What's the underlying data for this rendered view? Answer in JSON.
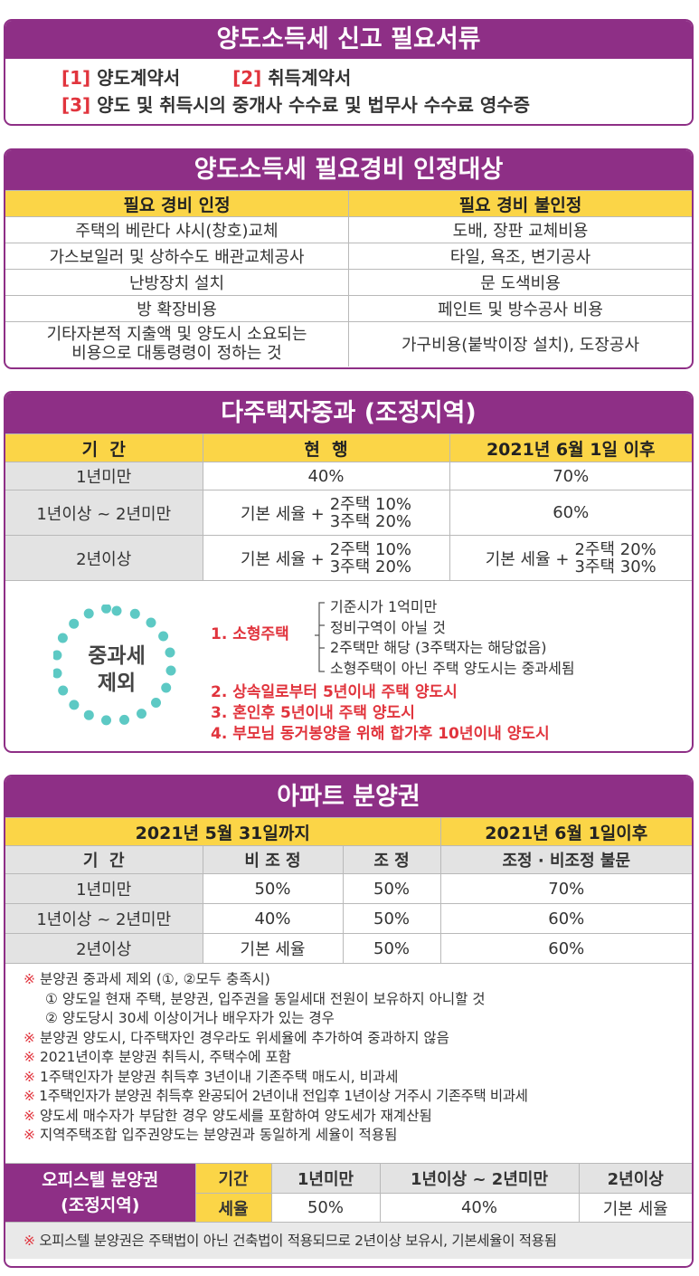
{
  "section1": {
    "title": "양도소득세 신고 필요서류",
    "items": [
      {
        "num": "[1]",
        "text": "양도계약서"
      },
      {
        "num": "[2]",
        "text": "취득계약서"
      },
      {
        "num": "[3]",
        "text": "양도 및 취득시의 중개사 수수료 및 법무사 수수료 영수증"
      }
    ]
  },
  "section2": {
    "title": "양도소득세 필요경비 인정대상",
    "col_headers": [
      "필요 경비 인정",
      "필요 경비 불인정"
    ],
    "rows": [
      [
        "주택의 베란다 샤시(창호)교체",
        "도배, 장판 교체비용"
      ],
      [
        "가스보일러 및 상하수도 배관교체공사",
        "타일, 욕조, 변기공사"
      ],
      [
        "난방장치 설치",
        "문 도색비용"
      ],
      [
        "방 확장비용",
        "페인트 및 방수공사 비용"
      ],
      [
        "기타자본적 지출액 및 양도시 소요되는",
        "가구비용(붙박이장 설치), 도장공사"
      ]
    ],
    "row5_line2": "비용으로 대통령령이 정하는 것"
  },
  "section3": {
    "title": "다주택자중과 (조정지역)",
    "col_headers": [
      "기  간",
      "현  행",
      "2021년 6월 1일 이후"
    ],
    "row1": {
      "period": "1년미만",
      "current": "40%",
      "after": "70%"
    },
    "row2": {
      "period": "1년이상 ~ 2년미만",
      "base": "기본 세율 +",
      "l1": "2주택 10%",
      "l2": "3주택 20%",
      "after": "60%"
    },
    "row3": {
      "period": "2년이상",
      "base": "기본 세율 +",
      "l1": "2주택 10%",
      "l2": "3주택 20%",
      "after_base": "기본 세율 +",
      "a1": "2주택 20%",
      "a2": "3주택 30%"
    },
    "exclusion": {
      "badge_line1": "중과세",
      "badge_line2": "제외",
      "item1": "1. 소형주택",
      "item1_sub": [
        "기준시가 1억미만",
        "정비구역이 아닐 것",
        "2주택만 해당 (3주택자는 해당없음)",
        "소형주택이 아닌 주택 양도시는 중과세됨"
      ],
      "item2": "2. 상속일로부터 5년이내 주택 양도시",
      "item3": "3. 혼인후 5년이내 주택 양도시",
      "item4": "4. 부모님 동거봉양을 위해 합가후 10년이내 양도시"
    }
  },
  "section4": {
    "title": "아파트 분양권",
    "period_headers": [
      "2021년 5월 31일까지",
      "2021년 6월 1일이후"
    ],
    "sub_headers": [
      "기  간",
      "비 조 정",
      "조 정",
      "조정 · 비조정 불문"
    ],
    "rows": [
      [
        "1년미만",
        "50%",
        "50%",
        "70%"
      ],
      [
        "1년이상 ~ 2년미만",
        "40%",
        "50%",
        "60%"
      ],
      [
        "2년이상",
        "기본 세율",
        "50%",
        "60%"
      ]
    ],
    "note_mark": "※",
    "notes": [
      "분양권 중과세 제외 (①, ②모두 충족시)",
      "분양권 양도시, 다주택자인 경우라도 위세율에 추가하여 중과하지 않음",
      "2021년이후 분양권 취득시, 주택수에 포함",
      "1주택인자가 분양권 취득후 3년이내 기존주택 매도시, 비과세",
      "1주택인자가 분양권 취득후 완공되어 2년이내 전입후 1년이상 거주시 기존주택 비과세",
      "양도세 매수자가 부담한 경우 양도세를 포함하여 양도세가 재계산됨",
      "지역주택조합 입주권양도는 분양권과 동일하게 세율이 적용됨"
    ],
    "subnotes": [
      "① 양도일 현재 주택, 분양권, 입주권을 동일세대 전원이 보유하지 아니할 것",
      "② 양도당시 30세 이상이거나 배우자가 있는 경우"
    ],
    "officetel": {
      "title_line1": "오피스텔 분양권",
      "title_line2": "(조정지역)",
      "label_period": "기간",
      "label_rate": "세율",
      "periods": [
        "1년미만",
        "1년이상 ~ 2년미만",
        "2년이상"
      ],
      "rates": [
        "50%",
        "40%",
        "기본 세율"
      ]
    },
    "final_note": "오피스텔 분양권은 주택법이 아닌 건축법이 적용되므로 2년이상 보유시, 기본세율이 적용됨"
  },
  "colors": {
    "purple": "#8e2f86",
    "yellow": "#fbd547",
    "red": "#e1343d",
    "teal": "#5dc9c4",
    "gray": "#e3e3e3"
  }
}
